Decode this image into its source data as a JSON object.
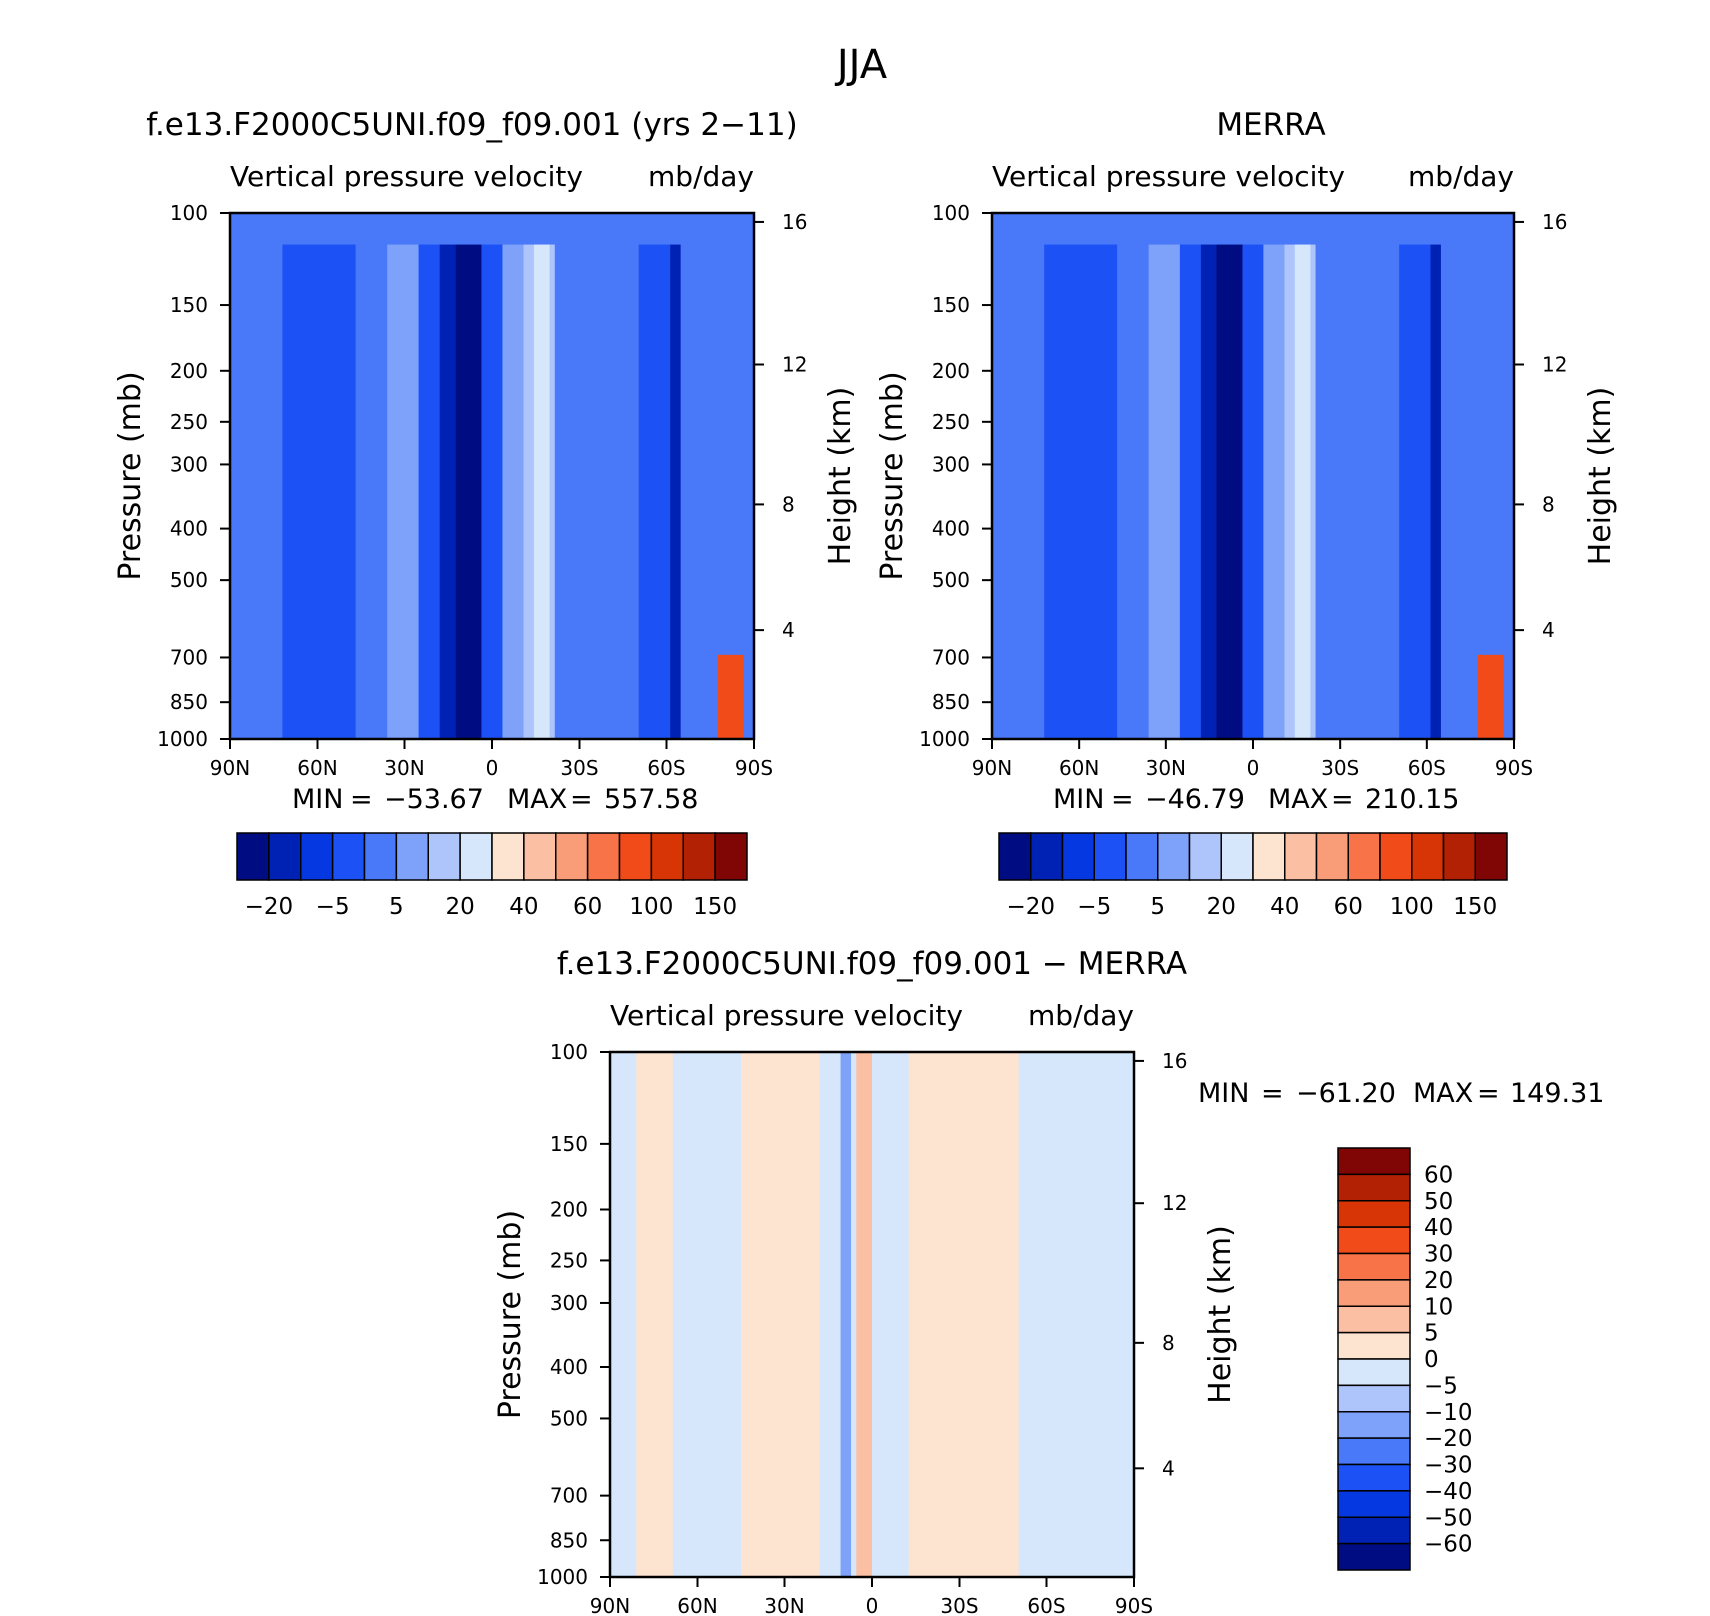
{
  "figure_title": "JJA",
  "chart_data": [
    {
      "type": "heatmap",
      "id": "model",
      "title": "f.e13.F2000C5UNI.f09_f09.001 (yrs 2−11)",
      "subtitle_left": "Vertical pressure velocity",
      "subtitle_right": "mb/day",
      "ylabel": "Pressure (mb)",
      "y2label": "Height (km)",
      "x_ticks": [
        "90N",
        "60N",
        "30N",
        "0",
        "30S",
        "60S",
        "90S"
      ],
      "y_ticks": [
        "100",
        "150",
        "200",
        "250",
        "300",
        "400",
        "500",
        "700",
        "850",
        "1000"
      ],
      "y2_ticks": [
        "16",
        "12",
        "8",
        "4"
      ],
      "stats": {
        "min_label": "MIN",
        "min": "−53.67",
        "max_label": "MAX",
        "max": "557.58"
      },
      "colorbar": {
        "orientation": "horizontal",
        "colors": [
          "#000c82",
          "#0022b4",
          "#0538e0",
          "#1c52f5",
          "#4978f8",
          "#7ea1f9",
          "#adc5fa",
          "#d6e7fc",
          "#fde4d1",
          "#fbc0a4",
          "#f99c78",
          "#f87347",
          "#f04b18",
          "#d83506",
          "#b32105",
          "#800505"
        ],
        "labels": [
          "−20",
          "−5",
          "5",
          "20",
          "40",
          "60",
          "100",
          "150"
        ]
      }
    },
    {
      "type": "heatmap",
      "id": "obs",
      "title": "MERRA",
      "subtitle_left": "Vertical pressure velocity",
      "subtitle_right": "mb/day",
      "ylabel": "Pressure (mb)",
      "y2label": "Height (km)",
      "x_ticks": [
        "90N",
        "60N",
        "30N",
        "0",
        "30S",
        "60S",
        "90S"
      ],
      "y_ticks": [
        "100",
        "150",
        "200",
        "250",
        "300",
        "400",
        "500",
        "700",
        "850",
        "1000"
      ],
      "y2_ticks": [
        "16",
        "12",
        "8",
        "4"
      ],
      "stats": {
        "min_label": "MIN",
        "min": "−46.79",
        "max_label": "MAX",
        "max": "210.15"
      },
      "colorbar": {
        "orientation": "horizontal",
        "colors": [
          "#000c82",
          "#0022b4",
          "#0538e0",
          "#1c52f5",
          "#4978f8",
          "#7ea1f9",
          "#adc5fa",
          "#d6e7fc",
          "#fde4d1",
          "#fbc0a4",
          "#f99c78",
          "#f87347",
          "#f04b18",
          "#d83506",
          "#b32105",
          "#800505"
        ],
        "labels": [
          "−20",
          "−5",
          "5",
          "20",
          "40",
          "60",
          "100",
          "150"
        ]
      }
    },
    {
      "type": "heatmap",
      "id": "diff",
      "title": "f.e13.F2000C5UNI.f09_f09.001 − MERRA",
      "subtitle_left": "Vertical pressure velocity",
      "subtitle_right": "mb/day",
      "ylabel": "Pressure (mb)",
      "y2label": "Height (km)",
      "x_ticks": [
        "90N",
        "60N",
        "30N",
        "0",
        "30S",
        "60S",
        "90S"
      ],
      "y_ticks": [
        "100",
        "150",
        "200",
        "250",
        "300",
        "400",
        "500",
        "700",
        "850",
        "1000"
      ],
      "y2_ticks": [
        "16",
        "12",
        "8",
        "4"
      ],
      "stats": {
        "min_label": "MIN",
        "min": "−61.20",
        "max_label": "MAX",
        "max": "149.31"
      },
      "colorbar": {
        "orientation": "vertical",
        "colors": [
          "#800505",
          "#b32105",
          "#d83506",
          "#f04b18",
          "#f87347",
          "#f99c78",
          "#fbc0a4",
          "#fde4d1",
          "#d6e7fc",
          "#adc5fa",
          "#7ea1f9",
          "#4978f8",
          "#1c52f5",
          "#0538e0",
          "#0022b4",
          "#000c82"
        ],
        "labels": [
          "60",
          "50",
          "40",
          "30",
          "20",
          "10",
          "5",
          "0",
          "−5",
          "−10",
          "−20",
          "−30",
          "−40",
          "−50",
          "−60"
        ]
      }
    }
  ]
}
